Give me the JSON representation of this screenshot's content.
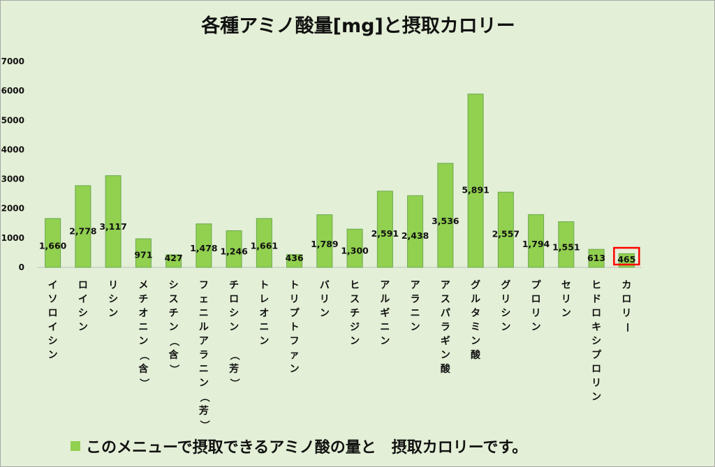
{
  "chart_data": {
    "type": "bar",
    "title": "各種アミノ酸量[mg]と摂取カロリー",
    "categories": [
      "イソロイシン",
      "ロイシン",
      "リシン",
      "メチオニン（含）",
      "シスチン（含）",
      "フェニルアラニン（芳）",
      "チロシン　（芳）",
      "トレオニン",
      "トリプトファン",
      "バリン",
      "ヒスチジン",
      "アルギニン",
      "アラニン",
      "アスパラギン酸",
      "グルタミン酸",
      "グリシン",
      "プロリン",
      "セリン",
      "ヒドロキシプロリン",
      "カロリー"
    ],
    "values": [
      1660,
      2778,
      3117,
      971,
      427,
      1478,
      1246,
      1661,
      436,
      1789,
      1300,
      2591,
      2438,
      3536,
      5891,
      2557,
      1794,
      1551,
      613,
      465
    ],
    "value_labels": [
      "1,660",
      "2,778",
      "3,117",
      "971",
      "427",
      "1,478",
      "1,246",
      "1,661",
      "436",
      "1,789",
      "1,300",
      "2,591",
      "2,438",
      "3,536",
      "5,891",
      "2,557",
      "1,794",
      "1,551",
      "613",
      "465"
    ],
    "yticks": [
      "0",
      "1000",
      "2000",
      "3000",
      "4000",
      "5000",
      "6000",
      "7000"
    ],
    "ylim": [
      0,
      7000
    ],
    "grid": false,
    "legend": {
      "position": "bottom",
      "text": "このメニューで摂取できるアミノ酸の量と　摂取カロリーです。"
    },
    "highlight": {
      "category": "カロリー",
      "color": "#ff0000"
    }
  },
  "colors": {
    "bar_fill": "#92d050",
    "bar_stroke": "#6aa84f",
    "background": "#e3efd6",
    "highlight_border": "#ff0000"
  }
}
